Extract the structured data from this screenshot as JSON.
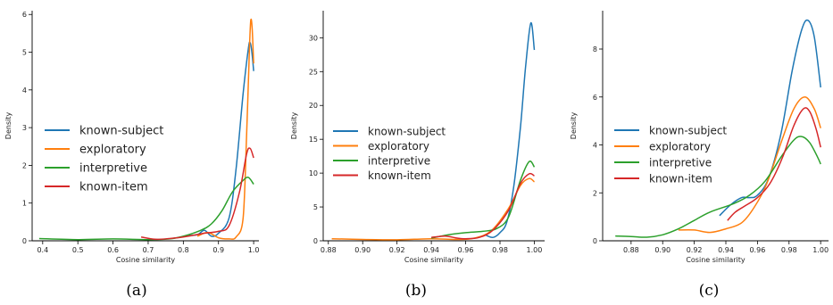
{
  "chart_data": [
    {
      "type": "line",
      "panel": "(a)",
      "xlabel": "Cosine similarity",
      "ylabel": "Density",
      "xlim": [
        0.37,
        1.015
      ],
      "ylim": [
        0,
        6.1
      ],
      "xticks": [
        0.4,
        0.5,
        0.6,
        0.7,
        0.8,
        0.9,
        1.0
      ],
      "xtick_labels": [
        "0.4",
        "0.5",
        "0.6",
        "0.7",
        "0.8",
        "0.9",
        "1.0"
      ],
      "yticks": [
        0,
        1,
        2,
        3,
        4,
        5,
        6
      ],
      "ytick_labels": [
        "0",
        "1",
        "2",
        "3",
        "4",
        "5",
        "6"
      ],
      "legend_position": "center-left",
      "series": [
        {
          "name": "known-subject",
          "color": "#1f77b4",
          "points": [
            [
              0.81,
              0.14
            ],
            [
              0.84,
              0.16
            ],
            [
              0.86,
              0.28
            ],
            [
              0.88,
              0.12
            ],
            [
              0.9,
              0.2
            ],
            [
              0.93,
              0.6
            ],
            [
              0.95,
              1.9
            ],
            [
              0.97,
              3.9
            ],
            [
              0.985,
              5.1
            ],
            [
              0.99,
              5.25
            ],
            [
              0.995,
              5.0
            ],
            [
              1.0,
              4.5
            ]
          ]
        },
        {
          "name": "exploratory",
          "color": "#ff7f0e",
          "points": [
            [
              0.84,
              0.12
            ],
            [
              0.87,
              0.22
            ],
            [
              0.9,
              0.08
            ],
            [
              0.93,
              0.05
            ],
            [
              0.95,
              0.1
            ],
            [
              0.97,
              0.6
            ],
            [
              0.98,
              2.8
            ],
            [
              0.988,
              5.1
            ],
            [
              0.992,
              5.85
            ],
            [
              0.996,
              5.6
            ],
            [
              1.0,
              4.7
            ]
          ]
        },
        {
          "name": "interpretive",
          "color": "#2ca02c",
          "points": [
            [
              0.39,
              0.06
            ],
            [
              0.5,
              0.03
            ],
            [
              0.6,
              0.05
            ],
            [
              0.7,
              0.03
            ],
            [
              0.76,
              0.05
            ],
            [
              0.8,
              0.12
            ],
            [
              0.85,
              0.28
            ],
            [
              0.88,
              0.45
            ],
            [
              0.91,
              0.8
            ],
            [
              0.94,
              1.3
            ],
            [
              0.97,
              1.6
            ],
            [
              0.985,
              1.68
            ],
            [
              1.0,
              1.5
            ]
          ]
        },
        {
          "name": "known-item",
          "color": "#d62728",
          "points": [
            [
              0.68,
              0.1
            ],
            [
              0.72,
              0.04
            ],
            [
              0.76,
              0.06
            ],
            [
              0.8,
              0.1
            ],
            [
              0.86,
              0.2
            ],
            [
              0.9,
              0.25
            ],
            [
              0.93,
              0.4
            ],
            [
              0.96,
              1.3
            ],
            [
              0.98,
              2.3
            ],
            [
              0.99,
              2.45
            ],
            [
              1.0,
              2.2
            ]
          ]
        }
      ]
    },
    {
      "type": "line",
      "panel": "(b)",
      "xlabel": "Cosine similarity",
      "ylabel": "Density",
      "xlim": [
        0.877,
        1.006
      ],
      "ylim": [
        0,
        34
      ],
      "xticks": [
        0.88,
        0.9,
        0.92,
        0.94,
        0.96,
        0.98,
        1.0
      ],
      "xtick_labels": [
        "0.88",
        "0.90",
        "0.92",
        "0.94",
        "0.96",
        "0.98",
        "1.00"
      ],
      "yticks": [
        0,
        5,
        10,
        15,
        20,
        25,
        30
      ],
      "ytick_labels": [
        "0",
        "5",
        "10",
        "15",
        "20",
        "25",
        "30"
      ],
      "legend_position": "center-left",
      "series": [
        {
          "name": "known-subject",
          "color": "#1f77b4",
          "points": [
            [
              0.972,
              0.8
            ],
            [
              0.976,
              0.5
            ],
            [
              0.98,
              1.2
            ],
            [
              0.984,
              2.8
            ],
            [
              0.988,
              8.0
            ],
            [
              0.992,
              17.0
            ],
            [
              0.995,
              26.0
            ],
            [
              0.998,
              32.2
            ],
            [
              1.0,
              28.2
            ]
          ]
        },
        {
          "name": "exploratory",
          "color": "#ff7f0e",
          "points": [
            [
              0.882,
              0.3
            ],
            [
              0.9,
              0.2
            ],
            [
              0.92,
              0.15
            ],
            [
              0.94,
              0.3
            ],
            [
              0.955,
              0.2
            ],
            [
              0.965,
              0.4
            ],
            [
              0.975,
              1.5
            ],
            [
              0.985,
              4.8
            ],
            [
              0.992,
              8.2
            ],
            [
              0.997,
              9.2
            ],
            [
              1.0,
              8.7
            ]
          ]
        },
        {
          "name": "interpretive",
          "color": "#2ca02c",
          "points": [
            [
              0.94,
              0.4
            ],
            [
              0.95,
              0.9
            ],
            [
              0.96,
              1.2
            ],
            [
              0.97,
              1.4
            ],
            [
              0.978,
              1.8
            ],
            [
              0.985,
              3.5
            ],
            [
              0.992,
              9.0
            ],
            [
              0.997,
              11.7
            ],
            [
              1.0,
              10.9
            ]
          ]
        },
        {
          "name": "known-item",
          "color": "#d62728",
          "points": [
            [
              0.94,
              0.5
            ],
            [
              0.948,
              0.7
            ],
            [
              0.955,
              0.4
            ],
            [
              0.96,
              0.3
            ],
            [
              0.968,
              0.5
            ],
            [
              0.976,
              1.6
            ],
            [
              0.985,
              4.5
            ],
            [
              0.992,
              8.5
            ],
            [
              0.997,
              9.9
            ],
            [
              1.0,
              9.6
            ]
          ]
        }
      ]
    },
    {
      "type": "line",
      "panel": "(c)",
      "xlabel": "Cosine similarity",
      "ylabel": "Density",
      "xlim": [
        0.862,
        1.005
      ],
      "ylim": [
        0,
        9.6
      ],
      "xticks": [
        0.88,
        0.9,
        0.92,
        0.94,
        0.96,
        0.98,
        1.0
      ],
      "xtick_labels": [
        "0.88",
        "0.90",
        "0.92",
        "0.94",
        "0.96",
        "0.98",
        "1.00"
      ],
      "yticks": [
        0,
        2,
        4,
        6,
        8
      ],
      "ytick_labels": [
        "0",
        "2",
        "4",
        "6",
        "8"
      ],
      "legend_position": "center-left",
      "series": [
        {
          "name": "known-subject",
          "color": "#1f77b4",
          "points": [
            [
              0.936,
              1.05
            ],
            [
              0.943,
              1.5
            ],
            [
              0.95,
              1.8
            ],
            [
              0.955,
              1.8
            ],
            [
              0.96,
              1.9
            ],
            [
              0.967,
              2.6
            ],
            [
              0.975,
              4.5
            ],
            [
              0.982,
              7.1
            ],
            [
              0.988,
              8.8
            ],
            [
              0.992,
              9.2
            ],
            [
              0.996,
              8.5
            ],
            [
              1.0,
              6.4
            ]
          ]
        },
        {
          "name": "exploratory",
          "color": "#ff7f0e",
          "points": [
            [
              0.91,
              0.45
            ],
            [
              0.92,
              0.45
            ],
            [
              0.93,
              0.35
            ],
            [
              0.94,
              0.5
            ],
            [
              0.95,
              0.75
            ],
            [
              0.958,
              1.4
            ],
            [
              0.966,
              2.4
            ],
            [
              0.975,
              4.1
            ],
            [
              0.983,
              5.5
            ],
            [
              0.99,
              6.0
            ],
            [
              0.996,
              5.5
            ],
            [
              1.0,
              4.7
            ]
          ]
        },
        {
          "name": "interpretive",
          "color": "#2ca02c",
          "points": [
            [
              0.87,
              0.2
            ],
            [
              0.88,
              0.18
            ],
            [
              0.89,
              0.15
            ],
            [
              0.9,
              0.25
            ],
            [
              0.91,
              0.5
            ],
            [
              0.92,
              0.85
            ],
            [
              0.93,
              1.2
            ],
            [
              0.945,
              1.55
            ],
            [
              0.955,
              1.9
            ],
            [
              0.965,
              2.5
            ],
            [
              0.975,
              3.5
            ],
            [
              0.983,
              4.2
            ],
            [
              0.988,
              4.35
            ],
            [
              0.993,
              4.1
            ],
            [
              0.998,
              3.5
            ],
            [
              1.0,
              3.2
            ]
          ]
        },
        {
          "name": "known-item",
          "color": "#d62728",
          "points": [
            [
              0.941,
              0.85
            ],
            [
              0.946,
              1.2
            ],
            [
              0.952,
              1.45
            ],
            [
              0.96,
              1.8
            ],
            [
              0.968,
              2.4
            ],
            [
              0.976,
              3.5
            ],
            [
              0.983,
              4.8
            ],
            [
              0.989,
              5.5
            ],
            [
              0.993,
              5.4
            ],
            [
              0.997,
              4.7
            ],
            [
              1.0,
              3.9
            ]
          ]
        }
      ]
    }
  ],
  "captions": [
    "(a)",
    "(b)",
    "(c)"
  ]
}
